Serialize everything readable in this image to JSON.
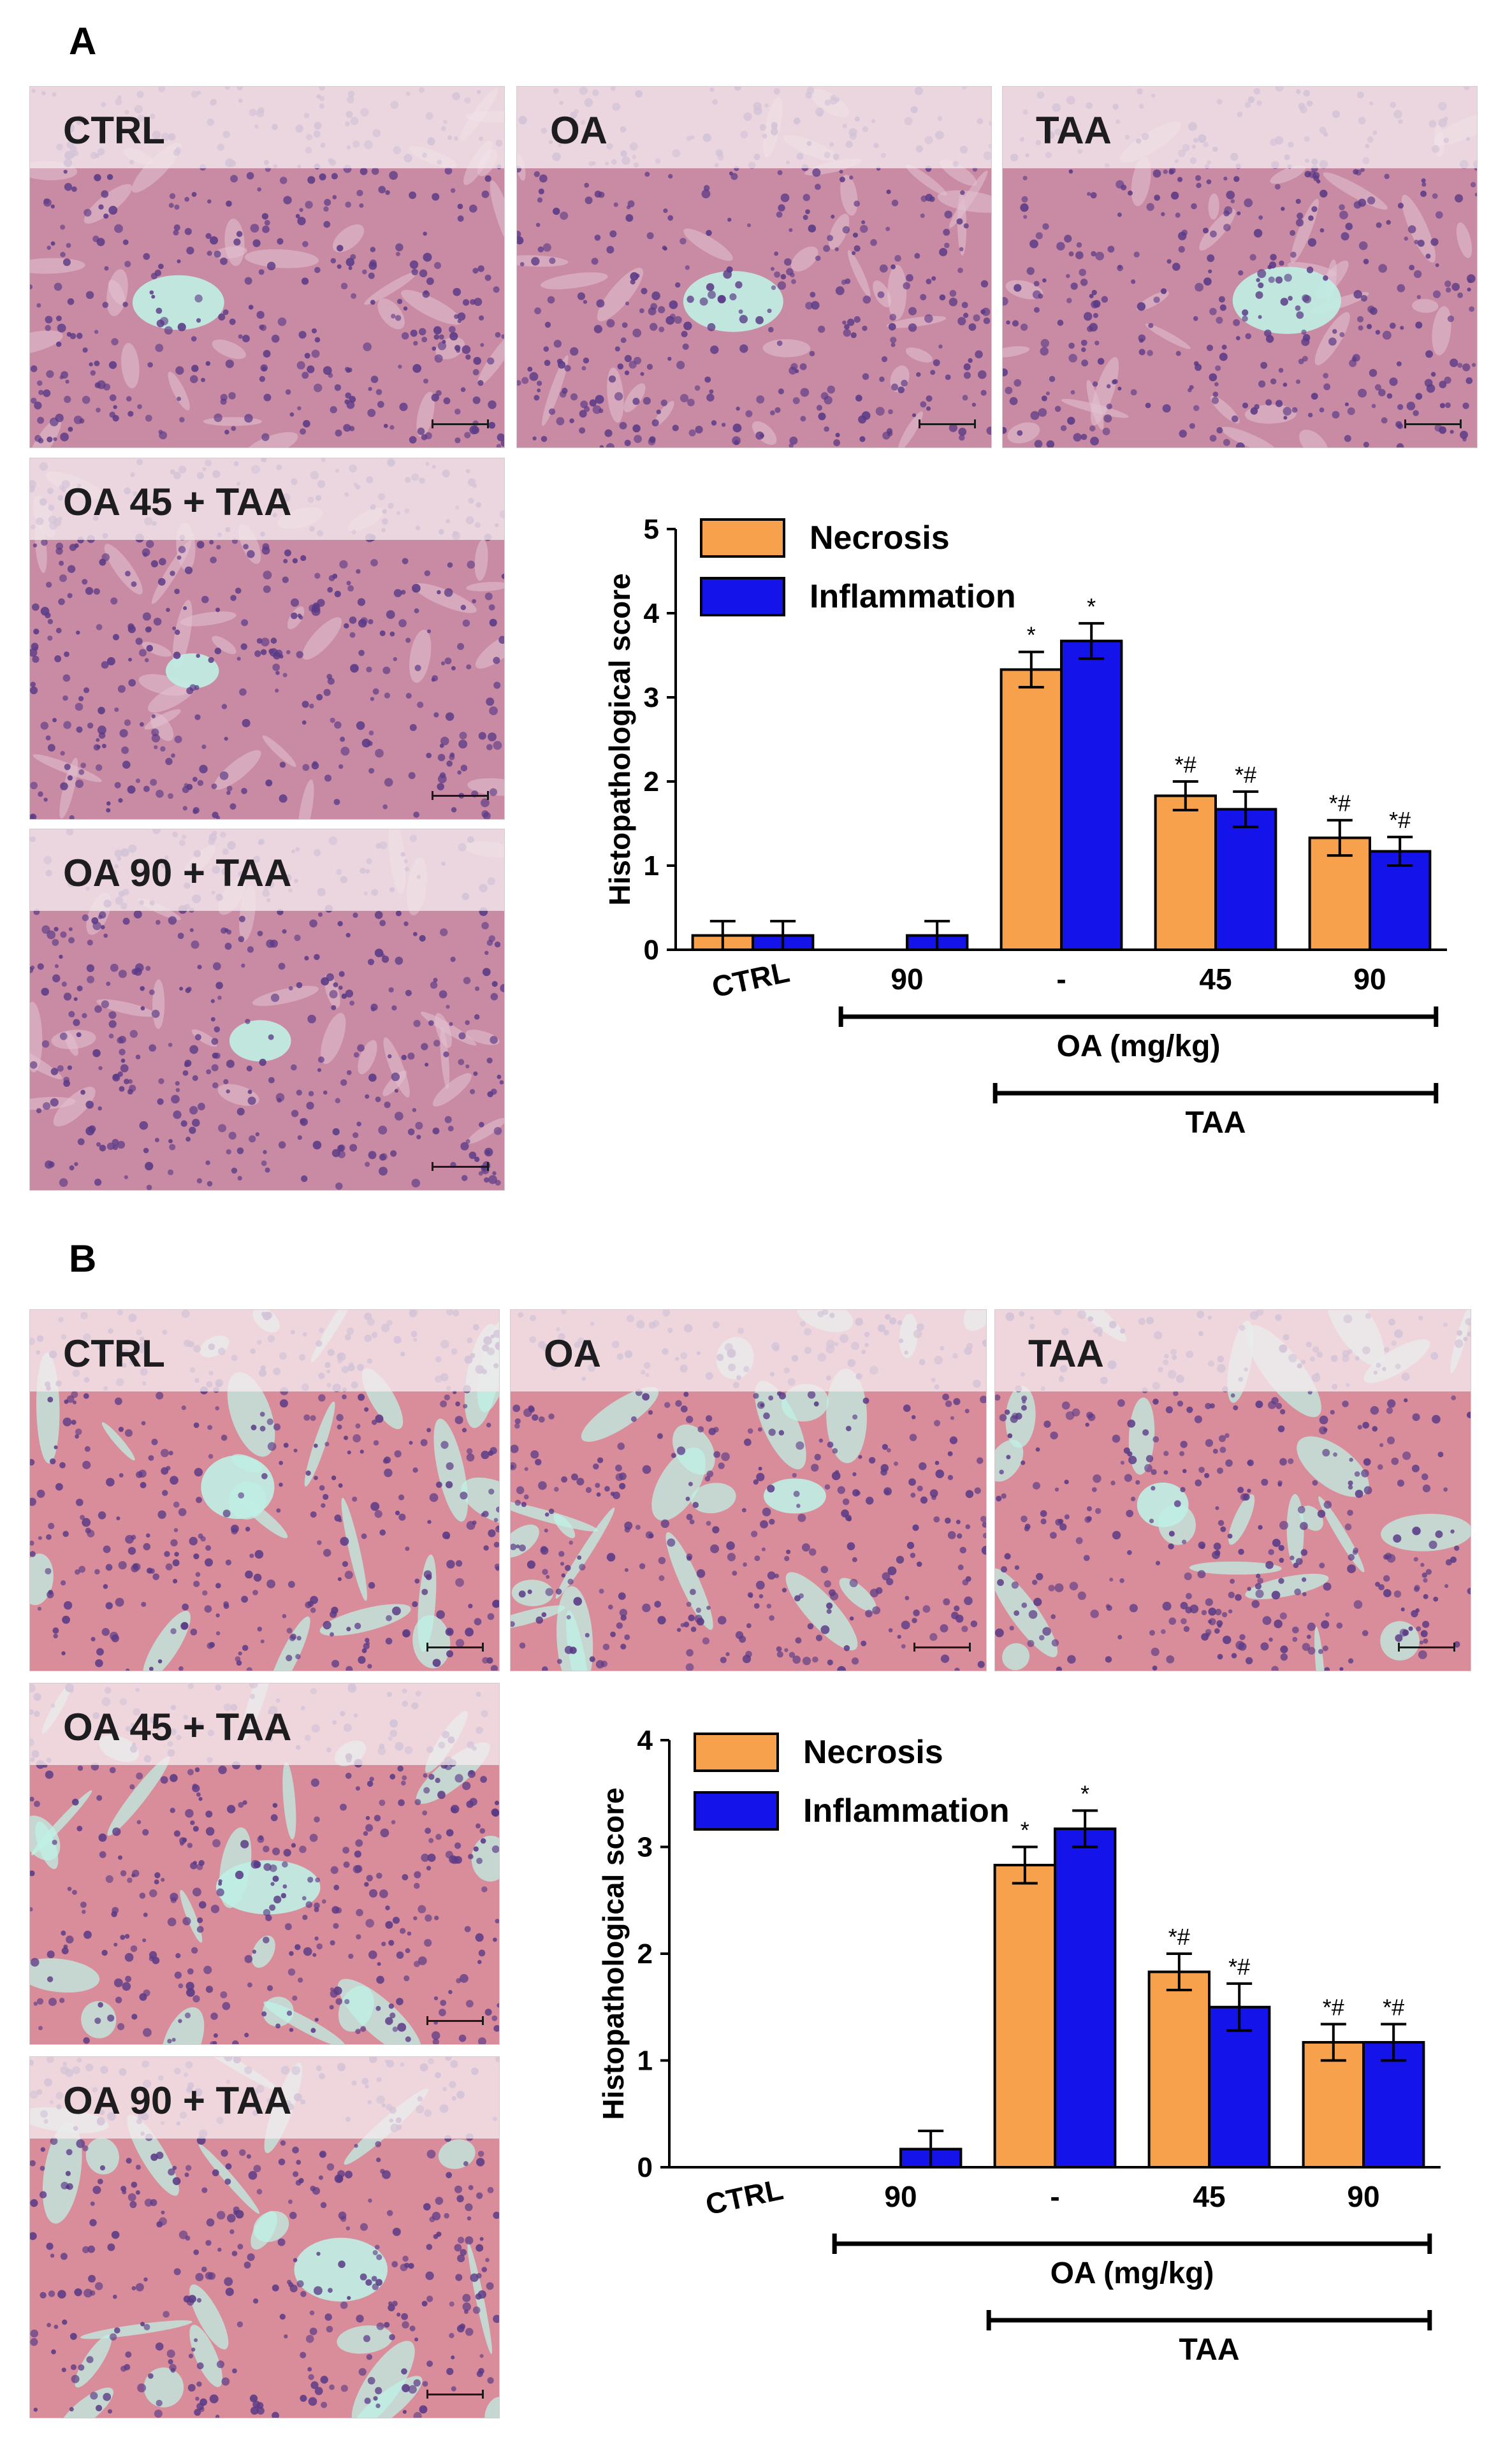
{
  "panels": [
    {
      "id": "A",
      "letter": "A",
      "tissue": "liver",
      "images": [
        {
          "label": "CTRL"
        },
        {
          "label": "OA"
        },
        {
          "label": "TAA"
        },
        {
          "label": "OA 45 + TAA"
        },
        {
          "label": "OA 90 + TAA"
        }
      ]
    },
    {
      "id": "B",
      "letter": "B",
      "tissue": "kidney",
      "images": [
        {
          "label": "CTRL"
        },
        {
          "label": "OA"
        },
        {
          "label": "TAA"
        },
        {
          "label": "OA 45 + TAA"
        },
        {
          "label": "OA 90 + TAA"
        }
      ]
    }
  ],
  "colors": {
    "necrosis": "#f7a14c",
    "inflammation": "#1414ea",
    "liver_tissue": "#c98aa3",
    "kidney_tissue": "#d98c99",
    "nuclei": "#5a3a86",
    "lumen": "#bff0e4"
  },
  "chart_data": [
    {
      "type": "bar",
      "panel": "A",
      "ylabel": "Histopathological score",
      "ylim": [
        0,
        5
      ],
      "yticks": [
        0,
        1,
        2,
        3,
        4,
        5
      ],
      "categories": [
        "CTRL",
        "90",
        "-",
        "45",
        "90"
      ],
      "series": [
        {
          "name": "Necrosis",
          "values": [
            0.17,
            0,
            3.33,
            1.83,
            1.33
          ],
          "errors": [
            0.17,
            0,
            0.21,
            0.17,
            0.21
          ],
          "annotations": [
            "",
            "",
            "*",
            "*#",
            "*#"
          ]
        },
        {
          "name": "Inflammation",
          "values": [
            0.17,
            0.17,
            3.67,
            1.67,
            1.17
          ],
          "errors": [
            0.17,
            0.17,
            0.21,
            0.21,
            0.17
          ],
          "annotations": [
            "",
            "",
            "*",
            "*#",
            "*#"
          ]
        }
      ],
      "brackets": [
        {
          "label": "OA (mg/kg)",
          "from": 1,
          "to": 4
        },
        {
          "label": "TAA",
          "from": 2,
          "to": 4
        }
      ],
      "legend_position": "top-left"
    },
    {
      "type": "bar",
      "panel": "B",
      "ylabel": "Histopathological score",
      "ylim": [
        0,
        4
      ],
      "yticks": [
        0,
        1,
        2,
        3,
        4
      ],
      "categories": [
        "CTRL",
        "90",
        "-",
        "45",
        "90"
      ],
      "series": [
        {
          "name": "Necrosis",
          "values": [
            0,
            0,
            2.83,
            1.83,
            1.17
          ],
          "errors": [
            0,
            0,
            0.17,
            0.17,
            0.17
          ],
          "annotations": [
            "",
            "",
            "*",
            "*#",
            "*#"
          ]
        },
        {
          "name": "Inflammation",
          "values": [
            0,
            0.17,
            3.17,
            1.5,
            1.17
          ],
          "errors": [
            0,
            0.17,
            0.17,
            0.22,
            0.17
          ],
          "annotations": [
            "",
            "",
            "*",
            "*#",
            "*#"
          ]
        }
      ],
      "brackets": [
        {
          "label": "OA (mg/kg)",
          "from": 1,
          "to": 4
        },
        {
          "label": "TAA",
          "from": 2,
          "to": 4
        }
      ],
      "legend_position": "top-left"
    }
  ]
}
